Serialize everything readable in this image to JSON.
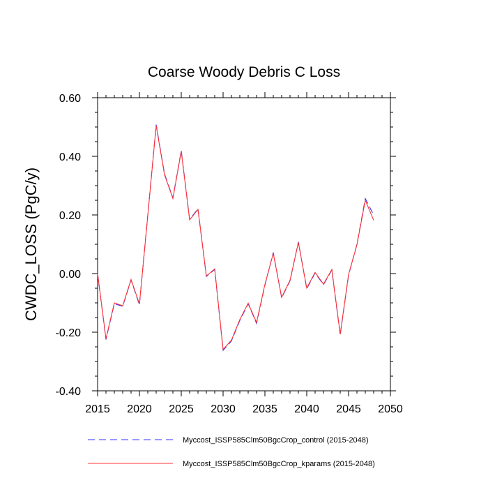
{
  "chart_data": {
    "type": "line",
    "title": "Coarse Woody Debris C Loss",
    "xlabel": "",
    "ylabel": "CWDC_LOSS  (PgC/y)",
    "xlim": [
      2015,
      2050
    ],
    "ylim": [
      -0.4,
      0.6
    ],
    "xticks": [
      2015,
      2020,
      2025,
      2030,
      2035,
      2040,
      2045,
      2050
    ],
    "xtick_labels": [
      "2015",
      "2020",
      "2025",
      "2030",
      "2035",
      "2040",
      "2045",
      "2050"
    ],
    "yticks": [
      -0.4,
      -0.2,
      0.0,
      0.2,
      0.4,
      0.6
    ],
    "ytick_labels": [
      "-0.40",
      "-0.20",
      "0.00",
      "0.20",
      "0.40",
      "0.60"
    ],
    "grid": false,
    "legend_position": "bottom",
    "x": [
      2015,
      2016,
      2017,
      2018,
      2019,
      2020,
      2021,
      2022,
      2023,
      2024,
      2025,
      2026,
      2027,
      2028,
      2029,
      2030,
      2031,
      2032,
      2033,
      2034,
      2035,
      2036,
      2037,
      2038,
      2039,
      2040,
      2041,
      2042,
      2043,
      2044,
      2045,
      2046,
      2047,
      2048
    ],
    "series": [
      {
        "name": "Myccost_ISSP585Clm50BgcCrop_control (2015-2048)",
        "color": "#3333ff",
        "style": "dashed",
        "values": [
          0.0,
          -0.225,
          -0.103,
          -0.112,
          -0.022,
          -0.107,
          0.2,
          0.508,
          0.34,
          0.258,
          0.42,
          0.185,
          0.221,
          -0.01,
          0.014,
          -0.262,
          -0.23,
          -0.16,
          -0.103,
          -0.17,
          -0.04,
          0.072,
          -0.083,
          -0.025,
          0.108,
          -0.052,
          0.002,
          -0.038,
          0.012,
          -0.21,
          -0.005,
          0.1,
          0.256,
          0.2
        ]
      },
      {
        "name": "Myccost_ISSP585Clm50BgcCrop_kparams (2015-2048)",
        "color": "#ff3333",
        "style": "solid",
        "values": [
          0.0,
          -0.222,
          -0.1,
          -0.11,
          -0.02,
          -0.104,
          0.198,
          0.505,
          0.337,
          0.256,
          0.417,
          0.183,
          0.219,
          -0.008,
          0.016,
          -0.259,
          -0.227,
          -0.157,
          -0.101,
          -0.167,
          -0.037,
          0.069,
          -0.081,
          -0.023,
          0.106,
          -0.049,
          0.004,
          -0.036,
          0.014,
          -0.207,
          -0.003,
          0.098,
          0.25,
          0.182
        ]
      }
    ]
  }
}
